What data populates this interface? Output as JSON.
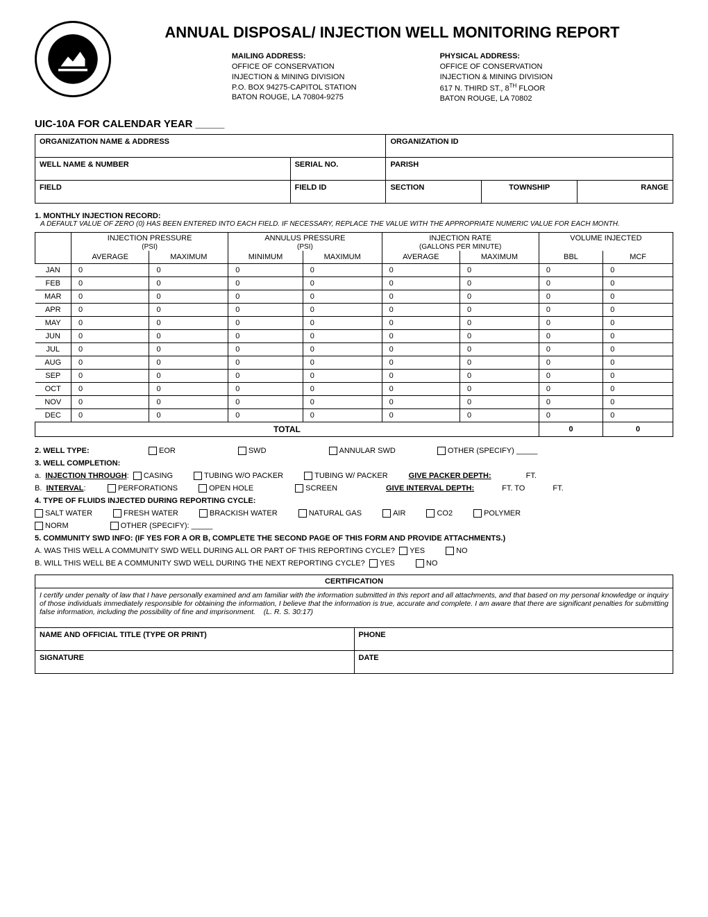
{
  "title": "ANNUAL DISPOSAL/ INJECTION WELL MONITORING REPORT",
  "mailing": {
    "header": "MAILING ADDRESS:",
    "l1": "OFFICE OF CONSERVATION",
    "l2": "INJECTION & MINING DIVISION",
    "l3": "P.O. BOX 94275-CAPITOL STATION",
    "l4": "BATON ROUGE, LA 70804-9275"
  },
  "physical": {
    "header": "PHYSICAL ADDRESS:",
    "l1": "OFFICE OF CONSERVATION",
    "l2": "INJECTION & MINING DIVISION",
    "l3a": "617 N. THIRD ST., 8",
    "l3b": "TH",
    "l3c": " FLOOR",
    "l4": "BATON ROUGE, LA 70802"
  },
  "formline": "UIC-10A FOR CALENDAR YEAR _____",
  "boxes": {
    "org_name": "ORGANIZATION NAME & ADDRESS",
    "org_id": "ORGANIZATION ID",
    "well_name": "WELL NAME & NUMBER",
    "serial": "SERIAL NO.",
    "parish": "PARISH",
    "field": "FIELD",
    "field_id": "FIELD ID",
    "section": "SECTION",
    "township": "TOWNSHIP",
    "range": "RANGE"
  },
  "sec1": {
    "title": "1.  MONTHLY INJECTION RECORD:",
    "sub": "A DEFAULT VALUE OF ZERO (0) HAS BEEN ENTERED INTO EACH FIELD.  IF NECESSARY, REPLACE THE VALUE WITH THE APPROPRIATE NUMERIC VALUE FOR EACH MONTH."
  },
  "cols": {
    "inj_press": "INJECTION PRESSURE",
    "ann_press": "ANNULUS PRESSURE",
    "psi": "(PSI)",
    "inj_rate": "INJECTION RATE",
    "gpm": "(GALLONS PER MINUTE)",
    "vol": "VOLUME INJECTED",
    "avg": "AVERAGE",
    "max": "MAXIMUM",
    "min": "MINIMUM",
    "bbl": "BBL",
    "mcf": "MCF"
  },
  "months": [
    "JAN",
    "FEB",
    "MAR",
    "APR",
    "MAY",
    "JUN",
    "JUL",
    "AUG",
    "SEP",
    "OCT",
    "NOV",
    "DEC"
  ],
  "default_val": "0",
  "total_lbl": "TOTAL",
  "total_bbl": "0",
  "total_mcf": "0",
  "welltype": {
    "lbl": "2.  WELL TYPE:",
    "eor": "EOR",
    "swd": "SWD",
    "ann": "ANNULAR SWD",
    "other": "OTHER (SPECIFY) _____"
  },
  "completion": {
    "lbl": "3.  WELL COMPLETION:",
    "a_lbl": "INJECTION THROUGH",
    "casing": "CASING",
    "tubing_no": "TUBING W/O PACKER",
    "tubing_w": "TUBING W/ PACKER",
    "packer_depth": "GIVE PACKER DEPTH:",
    "ft": "FT.",
    "b_lbl": "INTERVAL",
    "perf": "PERFORATIONS",
    "open": "OPEN HOLE",
    "screen": "SCREEN",
    "interval_depth": "GIVE INTERVAL DEPTH:",
    "ftto": "FT. TO",
    "ft2": "FT."
  },
  "fluids": {
    "lbl": "4.      TYPE OF FLUIDS INJECTED DURING REPORTING CYCLE:",
    "salt": "SALT WATER",
    "fresh": "FRESH WATER",
    "brackish": "BRACKISH WATER",
    "ng": "NATURAL GAS",
    "air": "AIR",
    "co2": "CO2",
    "poly": "POLYMER",
    "norm": "NORM",
    "other": "OTHER (SPECIFY): _____"
  },
  "community": {
    "lbl": "5.  COMMUNITY SWD INFO:  (IF YES FOR A OR B, COMPLETE THE SECOND PAGE OF THIS FORM AND PROVIDE ATTACHMENTS.)",
    "a": "A.   WAS THIS WELL A COMMUNITY SWD WELL DURING ALL OR PART OF THIS REPORTING CYCLE?",
    "b": "B.   WILL THIS WELL BE A COMMUNITY SWD WELL DURING THE NEXT REPORTING CYCLE?",
    "yes": "YES",
    "no": "NO"
  },
  "cert": {
    "head": "CERTIFICATION",
    "text": "I certify under penalty of law that I have personally examined and am familiar with the information submitted in this report and all attachments, and that based on my personal knowledge or inquiry of those individuals immediately responsible for obtaining the information, I believe that the information is true, accurate and complete.  I am aware that there are significant penalties for submitting false information, including the possibility of fine and imprisonment.",
    "lr": "(L. R. S. 30:17)",
    "name": "NAME AND OFFICIAL TITLE (TYPE OR PRINT)",
    "phone": "PHONE",
    "sig": "SIGNATURE",
    "date": "DATE"
  }
}
